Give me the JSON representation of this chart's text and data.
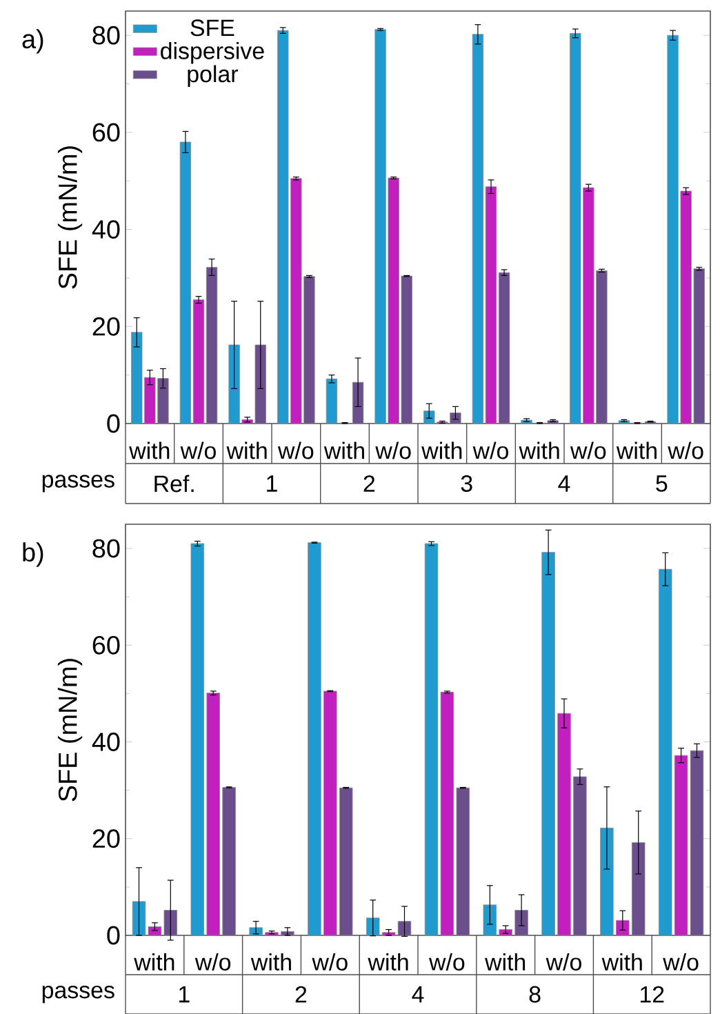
{
  "chart_data": [
    {
      "type": "bar",
      "title": "a)",
      "ylabel": "SFE (mN/m)",
      "xlabel": "passes",
      "categories": [
        "with",
        "w/o",
        "with",
        "w/o",
        "with",
        "w/o",
        "with",
        "w/o",
        "with",
        "w/o",
        "with",
        "w/o"
      ],
      "series": [
        {
          "name": "SFE",
          "color": "#1f9bd0",
          "values": [
            18.8,
            58,
            16.2,
            81,
            9.2,
            81.2,
            2.6,
            80.2,
            0.7,
            80.4,
            0.6,
            80
          ],
          "errors": [
            3,
            2.2,
            9,
            0.6,
            0.8,
            0.2,
            1.5,
            2,
            0.3,
            0.9,
            0.2,
            1
          ]
        },
        {
          "name": "dispersive",
          "color": "#c21fbf",
          "values": [
            9.5,
            25.5,
            0.8,
            50.5,
            0.1,
            50.6,
            0.3,
            48.8,
            0.1,
            48.6,
            0.1,
            47.9
          ],
          "errors": [
            1.5,
            0.7,
            0.5,
            0.3,
            0.1,
            0.2,
            0.2,
            1.4,
            0.1,
            0.7,
            0.1,
            0.7
          ]
        },
        {
          "name": "polar",
          "color": "#6b4f8c",
          "values": [
            9.3,
            32.2,
            16.2,
            30.3,
            8.5,
            30.4,
            2.2,
            31.1,
            0.6,
            31.5,
            0.4,
            31.9
          ],
          "errors": [
            2,
            1.7,
            9,
            0.2,
            5,
            0.1,
            1.3,
            0.6,
            0.2,
            0.3,
            0.1,
            0.3
          ]
        }
      ],
      "ylim": [
        0,
        85
      ],
      "yticks": [
        0,
        20,
        40,
        60,
        80
      ],
      "legend": "top left",
      "annotations": [
        "Ref.",
        "1",
        "2",
        "3",
        "4",
        "5"
      ]
    },
    {
      "type": "bar",
      "title": "b)",
      "ylabel": "SFE (mN/m)",
      "xlabel": "passes",
      "categories": [
        "with",
        "w/o",
        "with",
        "w/o",
        "with",
        "w/o",
        "with",
        "w/o",
        "with",
        "w/o"
      ],
      "series": [
        {
          "color": "#1f9bd0",
          "values": [
            7,
            81,
            1.6,
            81.2,
            3.6,
            81,
            6.3,
            79.2,
            22.2,
            75.7
          ],
          "errors": [
            7,
            0.5,
            1.3,
            0.1,
            3.7,
            0.4,
            4,
            4.6,
            8.5,
            3.4
          ]
        },
        {
          "color": "#c21fbf",
          "values": [
            1.8,
            50.1,
            0.6,
            50.5,
            0.6,
            50.3,
            1.2,
            45.9,
            3.1,
            37.2
          ],
          "errors": [
            0.8,
            0.4,
            0.3,
            0.1,
            0.6,
            0.2,
            0.8,
            3,
            2,
            1.5
          ]
        },
        {
          "color": "#6b4f8c",
          "values": [
            5.2,
            30.6,
            0.8,
            30.5,
            2.9,
            30.5,
            5.2,
            32.8,
            19.2,
            38.2
          ],
          "errors": [
            6.2,
            0.1,
            0.8,
            0.1,
            3.1,
            0.1,
            3.2,
            1.6,
            6.5,
            1.4
          ]
        }
      ],
      "ylim": [
        0,
        85
      ],
      "yticks": [
        0,
        20,
        40,
        60,
        80
      ],
      "annotations": [
        "1",
        "2",
        "4",
        "8",
        "12"
      ]
    }
  ]
}
